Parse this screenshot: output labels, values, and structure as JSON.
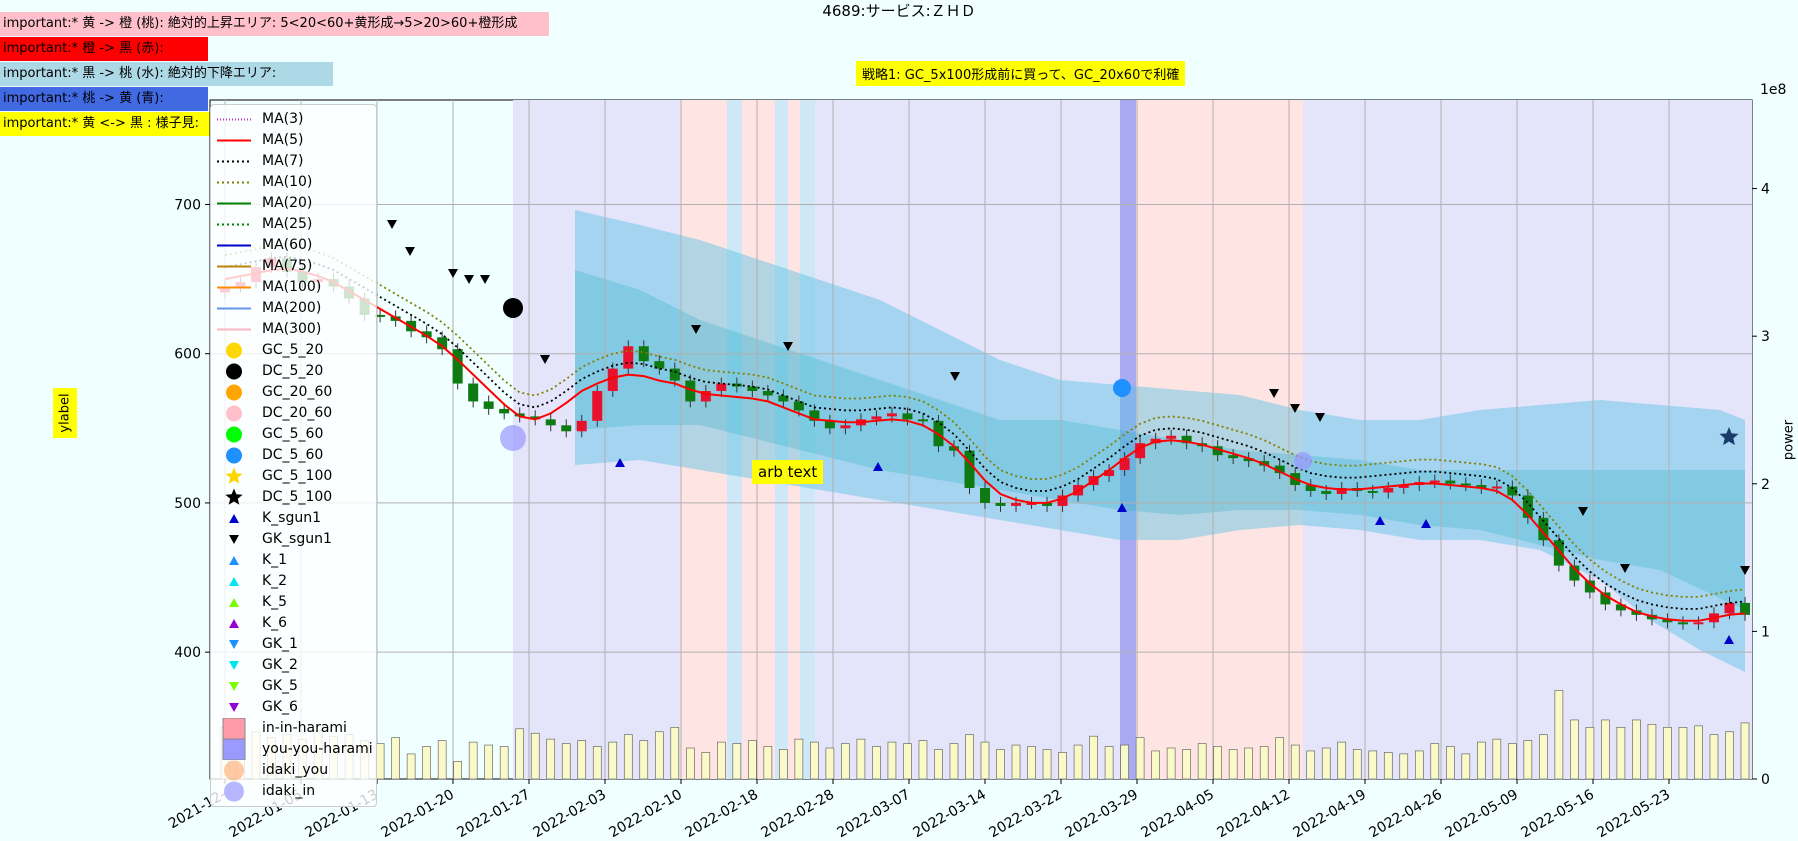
{
  "title": "4689:サービス:ＺＨＤ",
  "notes": [
    {
      "text": "important:* 黄 -> 橙 (桃): 絶対的上昇エリア: 5<20<60+黄形成→5>20>60+橙形成",
      "bg": "#ffc0cb"
    },
    {
      "text": "important:* 橙 -> 黒 (赤):",
      "bg": "#ff0000"
    },
    {
      "text": "important:* 黒 -> 桃 (水): 絶対的下降エリア:",
      "bg": "#add8e6"
    },
    {
      "text": "important:* 桃 -> 黄 (青):",
      "bg": "#4169e1"
    },
    {
      "text": "important:* 黄 <-> 黒 : 様子見:",
      "bg": "#ffff00"
    }
  ],
  "strategy_text": "戦略1: GC_5x100形成前に買って、GC_20x60で利確",
  "ylabel": "ylabel",
  "right_axis_label": "power",
  "right_axis_exponent": "1e8",
  "annotation": "arb text",
  "legend": [
    {
      "label": "MA(3)",
      "kind": "line",
      "color": "#cc33cc",
      "dash": "1,2"
    },
    {
      "label": "MA(5)",
      "kind": "line",
      "color": "#ff0000",
      "dash": ""
    },
    {
      "label": "MA(7)",
      "kind": "line",
      "color": "#000000",
      "dash": "2,3"
    },
    {
      "label": "MA(10)",
      "kind": "line",
      "color": "#808000",
      "dash": "2,3"
    },
    {
      "label": "MA(20)",
      "kind": "line",
      "color": "#008000",
      "dash": ""
    },
    {
      "label": "MA(25)",
      "kind": "line",
      "color": "#008000",
      "dash": "2,3"
    },
    {
      "label": "MA(60)",
      "kind": "line",
      "color": "#0000cd",
      "dash": ""
    },
    {
      "label": "MA(75)",
      "kind": "line",
      "color": "#b8860b",
      "dash": ""
    },
    {
      "label": "MA(100)",
      "kind": "line",
      "color": "#ff8c00",
      "dash": ""
    },
    {
      "label": "MA(200)",
      "kind": "line",
      "color": "#6495ed",
      "dash": ""
    },
    {
      "label": "MA(300)",
      "kind": "line",
      "color": "#ffb6c1",
      "dash": ""
    },
    {
      "label": "GC_5_20",
      "kind": "circle",
      "color": "#ffd700"
    },
    {
      "label": "DC_5_20",
      "kind": "circle",
      "color": "#000000"
    },
    {
      "label": "GC_20_60",
      "kind": "circle",
      "color": "#ffa500"
    },
    {
      "label": "DC_20_60",
      "kind": "circle",
      "color": "#ffc0cb"
    },
    {
      "label": "GC_5_60",
      "kind": "circle",
      "color": "#00ff00"
    },
    {
      "label": "DC_5_60",
      "kind": "circle",
      "color": "#1e90ff"
    },
    {
      "label": "GC_5_100",
      "kind": "star",
      "color": "#ffd700"
    },
    {
      "label": "DC_5_100",
      "kind": "star",
      "color": "#000000"
    },
    {
      "label": "K_sgun1",
      "kind": "tri-up",
      "color": "#0000cd"
    },
    {
      "label": "GK_sgun1",
      "kind": "tri-down",
      "color": "#000000"
    },
    {
      "label": "K_1",
      "kind": "tri-up",
      "color": "#1e90ff"
    },
    {
      "label": "K_2",
      "kind": "tri-up",
      "color": "#00e5ee"
    },
    {
      "label": "K_5",
      "kind": "tri-up",
      "color": "#7cfc00"
    },
    {
      "label": "K_6",
      "kind": "tri-up",
      "color": "#9400d3"
    },
    {
      "label": "GK_1",
      "kind": "tri-down",
      "color": "#1e90ff"
    },
    {
      "label": "GK_2",
      "kind": "tri-down",
      "color": "#00e5ee"
    },
    {
      "label": "GK_5",
      "kind": "tri-down",
      "color": "#7cfc00"
    },
    {
      "label": "GK_6",
      "kind": "tri-down",
      "color": "#9400d3"
    },
    {
      "label": "in-in-harami",
      "kind": "square",
      "color": "#ff9aa8"
    },
    {
      "label": "you-you-harami",
      "kind": "square",
      "color": "#9999ff"
    },
    {
      "label": "idaki_you",
      "kind": "bigcircle",
      "color": "#ffb380"
    },
    {
      "label": "idaki_in",
      "kind": "bigcircle",
      "color": "#9999ff"
    }
  ],
  "chart_data": {
    "type": "candlestick",
    "x_ticks": [
      "2021-12-",
      "2022-01-05",
      "2022-01-13",
      "2022-01-20",
      "2022-01-27",
      "2022-02-03",
      "2022-02-10",
      "2022-02-18",
      "2022-02-28",
      "2022-03-07",
      "2022-03-14",
      "2022-03-22",
      "2022-03-29",
      "2022-04-05",
      "2022-04-12",
      "2022-04-19",
      "2022-04-26",
      "2022-05-09",
      "2022-05-16",
      "2022-05-23"
    ],
    "y_ticks": [
      400,
      500,
      600,
      700
    ],
    "y_range": [
      315,
      770
    ],
    "right_ticks": [
      0,
      1,
      2,
      3,
      4
    ],
    "right_range": [
      0,
      4.6
    ],
    "close": [
      645,
      648,
      658,
      664,
      655,
      648,
      650,
      645,
      637,
      626,
      625,
      622,
      615,
      611,
      603,
      580,
      568,
      563,
      560,
      558,
      556,
      552,
      548,
      555,
      575,
      590,
      605,
      595,
      590,
      582,
      568,
      575,
      580,
      578,
      575,
      572,
      568,
      562,
      555,
      550,
      552,
      556,
      558,
      560,
      556,
      555,
      538,
      535,
      510,
      500,
      498,
      500,
      500,
      498,
      505,
      512,
      518,
      522,
      530,
      540,
      543,
      545,
      540,
      538,
      532,
      530,
      528,
      525,
      520,
      512,
      508,
      506,
      510,
      508,
      507,
      510,
      512,
      514,
      515,
      513,
      512,
      510,
      511,
      505,
      490,
      475,
      458,
      448,
      440,
      432,
      428,
      425,
      422,
      420,
      419,
      420,
      426,
      433,
      425
    ],
    "volume": [
      0.35,
      0.3,
      0.32,
      0.28,
      0.3,
      0.27,
      0.33,
      0.29,
      0.3,
      0.26,
      0.24,
      0.28,
      0.17,
      0.22,
      0.26,
      0.12,
      0.25,
      0.23,
      0.22,
      0.34,
      0.31,
      0.27,
      0.24,
      0.26,
      0.22,
      0.25,
      0.3,
      0.26,
      0.32,
      0.35,
      0.21,
      0.18,
      0.25,
      0.24,
      0.26,
      0.22,
      0.2,
      0.27,
      0.25,
      0.21,
      0.24,
      0.27,
      0.22,
      0.25,
      0.24,
      0.26,
      0.2,
      0.24,
      0.3,
      0.25,
      0.2,
      0.23,
      0.22,
      0.2,
      0.18,
      0.23,
      0.29,
      0.22,
      0.23,
      0.28,
      0.19,
      0.21,
      0.2,
      0.24,
      0.22,
      0.2,
      0.21,
      0.22,
      0.28,
      0.23,
      0.19,
      0.21,
      0.25,
      0.2,
      0.19,
      0.18,
      0.17,
      0.19,
      0.24,
      0.22,
      0.17,
      0.25,
      0.27,
      0.24,
      0.26,
      0.3,
      0.6,
      0.4,
      0.35,
      0.4,
      0.35,
      0.4,
      0.37,
      0.35,
      0.35,
      0.36,
      0.3,
      0.32,
      0.38
    ],
    "series": [
      {
        "name": "MA(5)",
        "color": "#ff0000",
        "values": [
          650,
          652,
          654,
          656,
          657,
          655,
          652,
          648,
          642,
          636,
          630,
          624,
          618,
          612,
          605,
          596,
          586,
          576,
          566,
          558,
          556,
          560,
          567,
          575,
          580,
          584,
          586,
          585,
          582,
          580,
          576,
          573,
          572,
          571,
          570,
          568,
          564,
          560,
          556,
          555,
          554,
          554,
          555,
          556,
          555,
          552,
          546,
          538,
          527,
          515,
          506,
          502,
          500,
          500,
          503,
          508,
          515,
          522,
          530,
          537,
          541,
          542,
          541,
          539,
          536,
          533,
          530,
          526,
          521,
          516,
          512,
          510,
          509,
          509,
          510,
          511,
          512,
          513,
          513,
          512,
          511,
          510,
          508,
          502,
          492,
          480,
          468,
          456,
          446,
          438,
          432,
          427,
          424,
          422,
          421,
          421,
          423,
          425,
          426
        ]
      }
    ]
  }
}
